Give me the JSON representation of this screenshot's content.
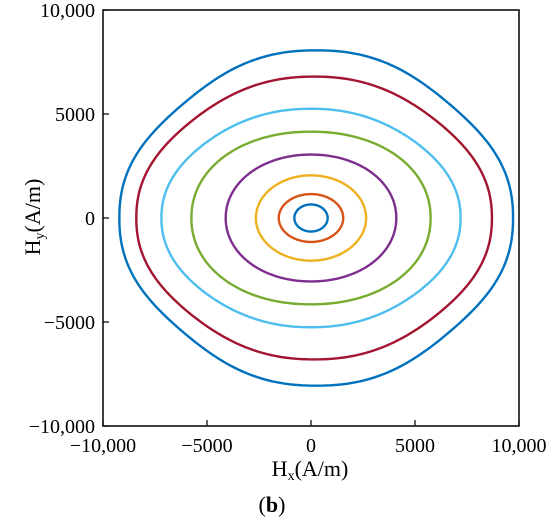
{
  "chart_data": {
    "type": "line",
    "xlabel": {
      "base": "H",
      "sub": "x",
      "unit": "(A/m)"
    },
    "ylabel": {
      "base": "H",
      "sub": "y",
      "unit": "(A/m)"
    },
    "xlim": [
      -10000,
      10000
    ],
    "ylim": [
      -10000,
      10000
    ],
    "xticks": [
      -10000,
      -5000,
      0,
      5000,
      10000
    ],
    "xtick_labels": [
      "−10,000",
      "−5000",
      "0",
      "5000",
      "10,000"
    ],
    "yticks": [
      -10000,
      -5000,
      0,
      5000,
      10000
    ],
    "ytick_labels": [
      "−10,000",
      "−5000",
      "0",
      "5000",
      "10,000"
    ],
    "grid": false,
    "caption": {
      "open": "(",
      "label": "b",
      "close": ")"
    },
    "series": [
      {
        "color": "#0072BD",
        "cx": 0,
        "cy": 0,
        "rx": 800,
        "ry": 650,
        "n": 2,
        "wobble": 0
      },
      {
        "color": "#D95319",
        "cx": 0,
        "cy": 0,
        "rx": 1550,
        "ry": 1150,
        "n": 2,
        "wobble": 0
      },
      {
        "color": "#EDB120",
        "cx": 0,
        "cy": 0,
        "rx": 2650,
        "ry": 2050,
        "n": 2,
        "wobble": 0
      },
      {
        "color": "#7E2F8E",
        "cx": 0,
        "cy": 0,
        "rx": 4100,
        "ry": 3050,
        "n": 2.05,
        "wobble": 0
      },
      {
        "color": "#77AC30",
        "cx": 0,
        "cy": 0,
        "rx": 5750,
        "ry": 4150,
        "n": 2.1,
        "wobble": 0
      },
      {
        "color": "#4DBEEE",
        "cx": 0,
        "cy": 0,
        "rx": 7050,
        "ry": 5150,
        "n": 2.15,
        "wobble": 0.02
      },
      {
        "color": "#A2142F",
        "cx": 150,
        "cy": 0,
        "rx": 8300,
        "ry": 6600,
        "n": 2.2,
        "wobble": 0.03
      },
      {
        "color": "#0072BD",
        "cx": 250,
        "cy": 0,
        "rx": 9100,
        "ry": 7750,
        "n": 2.25,
        "wobble": 0.04
      }
    ]
  }
}
